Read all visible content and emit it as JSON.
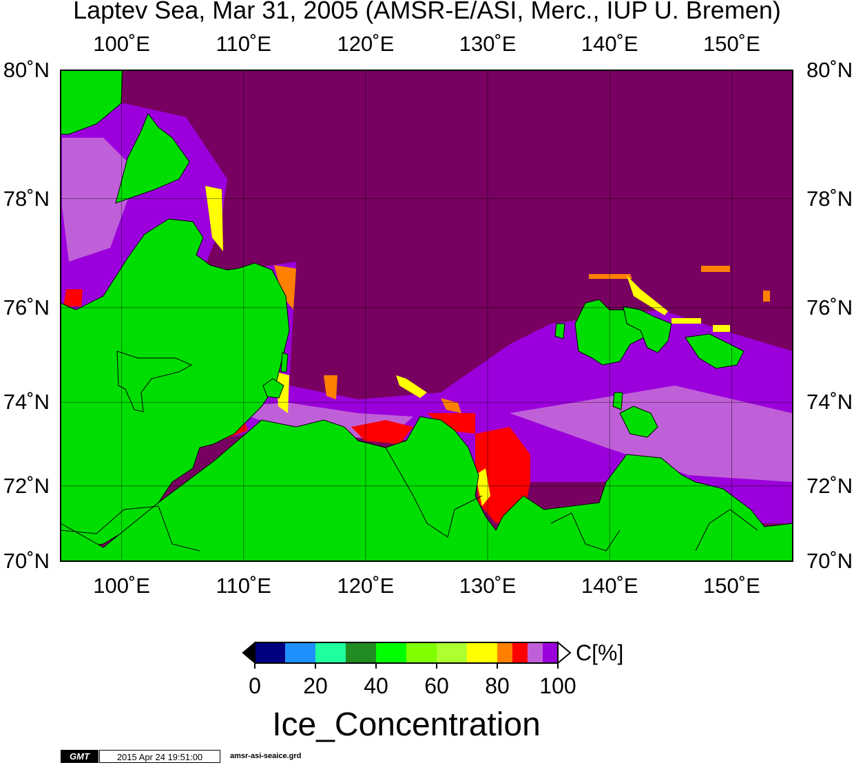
{
  "title": "Laptev Sea, Mar 31, 2005 (AMSR-E/ASI, Merc., IUP U. Bremen)",
  "map": {
    "projection": "Mercator",
    "lon_range": [
      95,
      155
    ],
    "lat_range": [
      70,
      80
    ],
    "lon_ticks": [
      "100˚E",
      "110˚E",
      "120˚E",
      "130˚E",
      "140˚E",
      "150˚E"
    ],
    "lat_ticks": [
      "70˚N",
      "72˚N",
      "74˚N",
      "76˚N",
      "78˚N",
      "80˚N"
    ],
    "colors": {
      "land": "#00dd00",
      "ice_100": "#780060",
      "ice_95": "#9b00dc",
      "ice_90": "#c060d8",
      "ice_85": "#ff0000",
      "ice_80": "#ff8000",
      "ice_70": "#ffff00",
      "coast": "#000000",
      "grid": "#000000"
    }
  },
  "colorbar": {
    "ticks": [
      "0",
      "20",
      "40",
      "60",
      "80",
      "100"
    ],
    "unit": "C[%]",
    "colors": [
      "#000080",
      "#1e90ff",
      "#20ff9f",
      "#228b22",
      "#00ff00",
      "#7fff00",
      "#adff2f",
      "#ffff00",
      "#ff8000",
      "#ff0000",
      "#c060d8",
      "#9b00dc"
    ],
    "over_color": "#ffffff",
    "under_color": "#000000"
  },
  "variable_title": "Ice_Concentration",
  "footer": {
    "logo": "GMT",
    "timestamp": "2015 Apr 24 19:51:00",
    "filename": "amsr-asi-seaice.grd"
  }
}
